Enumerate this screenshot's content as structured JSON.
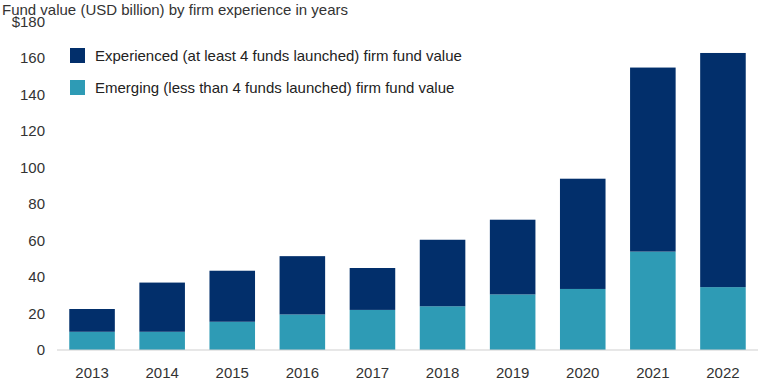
{
  "chart_data": {
    "type": "bar",
    "title": "Fund value (USD billion) by firm experience in years",
    "categories": [
      "2013",
      "2014",
      "2015",
      "2016",
      "2017",
      "2018",
      "2019",
      "2020",
      "2021",
      "2022"
    ],
    "series": [
      {
        "name": "Emerging (less than 4 funds launched) firm fund value",
        "color": "#2e9bb5",
        "values": [
          10,
          10,
          15.5,
          19.5,
          22,
          24,
          30.5,
          33.5,
          54,
          34.5
        ]
      },
      {
        "name": "Experienced (at least 4 funds launched) firm fund value",
        "color": "#022f6b",
        "values": [
          12.5,
          27,
          28,
          32,
          23,
          36.5,
          41,
          60.5,
          101,
          128.5
        ]
      }
    ],
    "ylim": [
      0,
      180
    ],
    "yticks": [
      0,
      20,
      40,
      60,
      80,
      100,
      120,
      140,
      160,
      {
        "value": 180,
        "label": "$180"
      }
    ],
    "stacked": true,
    "grid": false,
    "legend": "top-left"
  }
}
